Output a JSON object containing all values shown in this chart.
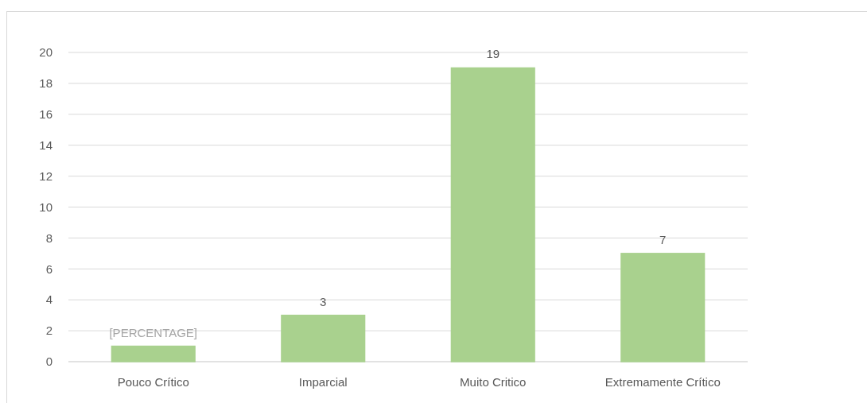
{
  "chart_data": {
    "type": "bar",
    "categories": [
      "Pouco Crítico",
      "Imparcial",
      "Muito Critico",
      "Extremamente Crítico"
    ],
    "values": [
      1,
      3,
      19,
      7
    ],
    "color": "#a9d18e",
    "value_labels": [
      "[PERCENTAGE]",
      "3",
      "19",
      "7"
    ],
    "ylim": [
      0,
      20
    ],
    "yticks": [
      0,
      2,
      4,
      6,
      8,
      10,
      12,
      14,
      16,
      18,
      20
    ],
    "grid": "y"
  }
}
